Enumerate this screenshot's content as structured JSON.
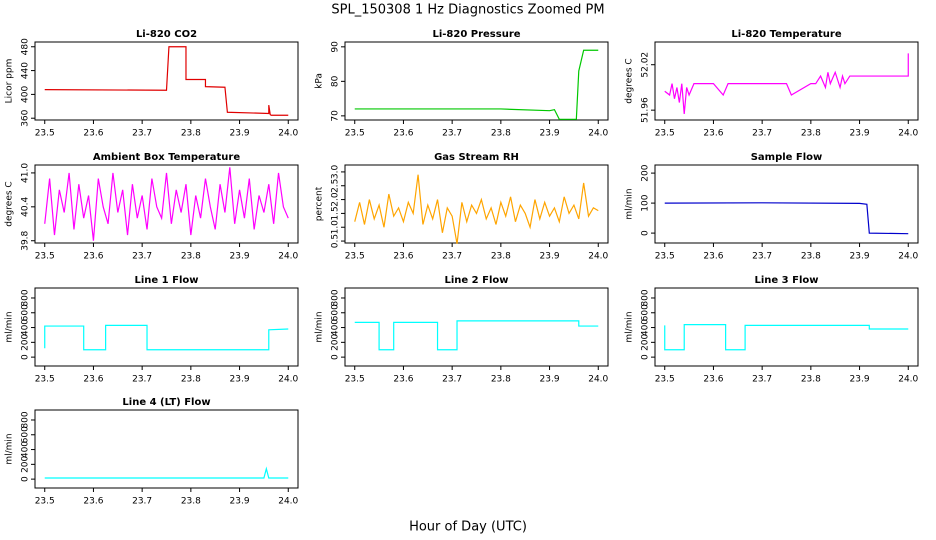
{
  "title": "SPL_150308  1 Hz Diagnostics Zoomed PM",
  "xlabel": "Hour of Day (UTC)",
  "chart_data": [
    {
      "type": "line",
      "title": "Li-820 CO2",
      "ylabel": "Licor ppm",
      "color": "#e00000",
      "x": [
        23.5,
        23.75,
        23.755,
        23.79,
        23.79,
        23.83,
        23.83,
        23.87,
        23.875,
        23.96,
        23.96,
        23.963,
        23.965,
        24.0
      ],
      "values": [
        408,
        407,
        480,
        480,
        425,
        425,
        413,
        412,
        370,
        368,
        382,
        366,
        365,
        365
      ],
      "xlim": [
        23.48,
        24.02
      ],
      "xticks": [
        23.5,
        23.6,
        23.7,
        23.8,
        23.9,
        {
          "value": 24,
          "label": "24.0"
        }
      ],
      "ylim": [
        357,
        488
      ],
      "yticks": [
        360,
        400,
        440,
        480
      ]
    },
    {
      "type": "line",
      "title": "Li-820 Pressure",
      "ylabel": "kPa",
      "color": "#00c800",
      "x": [
        23.5,
        23.8,
        23.9,
        23.91,
        23.92,
        23.955,
        23.96,
        23.97,
        24.0
      ],
      "values": [
        72,
        72,
        71.5,
        71.8,
        69,
        69,
        83,
        89,
        89
      ],
      "xlim": [
        23.48,
        24.02
      ],
      "xticks": [
        23.5,
        23.6,
        23.7,
        23.8,
        23.9,
        {
          "value": 24,
          "label": "24.0"
        }
      ],
      "ylim": [
        68.8,
        91.4
      ],
      "yticks": [
        70,
        80,
        90
      ]
    },
    {
      "type": "line",
      "title": "Li-820 Temperature",
      "ylabel": "degrees C",
      "color": "#ff00ff",
      "x": [
        23.5,
        23.51,
        23.515,
        23.52,
        23.525,
        23.53,
        23.535,
        23.54,
        23.545,
        23.55,
        23.56,
        23.6,
        23.62,
        23.63,
        23.65,
        23.7,
        23.75,
        23.76,
        23.8,
        23.81,
        23.82,
        23.83,
        23.835,
        23.84,
        23.85,
        23.86,
        23.865,
        23.87,
        23.88,
        23.9,
        23.95,
        23.99,
        24.0,
        24.0
      ],
      "values": [
        51.985,
        51.98,
        51.995,
        51.975,
        51.99,
        51.97,
        51.995,
        51.955,
        51.99,
        51.98,
        51.995,
        51.995,
        51.98,
        51.995,
        51.995,
        51.995,
        51.995,
        51.98,
        51.995,
        51.995,
        52.005,
        51.99,
        52.01,
        51.995,
        52.01,
        51.99,
        52.005,
        51.995,
        52.005,
        52.005,
        52.005,
        52.005,
        52.005,
        52.035
      ],
      "xlim": [
        23.48,
        24.02
      ],
      "xticks": [
        23.5,
        23.6,
        23.7,
        23.8,
        23.9,
        {
          "value": 24,
          "label": "24.0"
        }
      ],
      "ylim": [
        51.947,
        52.05
      ],
      "yticks": [
        51.96,
        52.02
      ]
    },
    {
      "type": "line",
      "title": "Ambient Box Temperature",
      "ylabel": "degrees C",
      "color": "#ff00ff",
      "x": [
        23.5,
        23.51,
        23.52,
        23.53,
        23.54,
        23.55,
        23.56,
        23.57,
        23.58,
        23.59,
        23.6,
        23.61,
        23.62,
        23.63,
        23.64,
        23.65,
        23.66,
        23.67,
        23.68,
        23.69,
        23.7,
        23.71,
        23.72,
        23.73,
        23.74,
        23.75,
        23.76,
        23.77,
        23.78,
        23.79,
        23.8,
        23.81,
        23.82,
        23.83,
        23.84,
        23.85,
        23.86,
        23.87,
        23.88,
        23.89,
        23.9,
        23.91,
        23.92,
        23.93,
        23.94,
        23.95,
        23.96,
        23.97,
        23.98,
        23.99,
        24.0
      ],
      "values": [
        40.1,
        40.9,
        39.9,
        40.7,
        40.3,
        41.0,
        40.0,
        40.8,
        40.2,
        40.6,
        39.8,
        40.9,
        40.4,
        40.1,
        41.0,
        40.3,
        40.7,
        39.9,
        40.8,
        40.2,
        40.6,
        40.0,
        40.9,
        40.4,
        40.2,
        41.0,
        40.1,
        40.7,
        40.3,
        40.8,
        39.9,
        40.6,
        40.2,
        40.9,
        40.4,
        40.0,
        40.8,
        40.3,
        41.1,
        40.1,
        40.7,
        40.2,
        40.9,
        40.0,
        40.6,
        40.3,
        40.8,
        40.1,
        41.0,
        40.4,
        40.2
      ],
      "xlim": [
        23.48,
        24.02
      ],
      "xticks": [
        23.5,
        23.6,
        23.7,
        23.8,
        23.9,
        {
          "value": 24,
          "label": "24.0"
        }
      ],
      "ylim": [
        39.76,
        41.14
      ],
      "yticks": [
        39.8,
        40.4,
        {
          "value": 41,
          "label": "41.0"
        }
      ]
    },
    {
      "type": "line",
      "title": "Gas Stream RH",
      "ylabel": "percent",
      "color": "#ffa500",
      "x": [
        23.5,
        23.51,
        23.52,
        23.53,
        23.54,
        23.55,
        23.56,
        23.57,
        23.58,
        23.59,
        23.6,
        23.61,
        23.62,
        23.63,
        23.64,
        23.65,
        23.66,
        23.67,
        23.68,
        23.69,
        23.7,
        23.71,
        23.72,
        23.73,
        23.74,
        23.75,
        23.76,
        23.77,
        23.78,
        23.79,
        23.8,
        23.81,
        23.82,
        23.83,
        23.84,
        23.85,
        23.86,
        23.87,
        23.88,
        23.89,
        23.9,
        23.91,
        23.92,
        23.93,
        23.94,
        23.95,
        23.96,
        23.97,
        23.98,
        23.99,
        24.0
      ],
      "values": [
        1.2,
        1.9,
        1.1,
        2.0,
        1.3,
        1.8,
        1.0,
        2.2,
        1.4,
        1.7,
        1.2,
        1.9,
        1.5,
        2.9,
        1.1,
        1.8,
        1.3,
        2.0,
        0.8,
        1.7,
        1.4,
        0.4,
        1.9,
        1.2,
        1.8,
        1.5,
        2.0,
        1.3,
        1.7,
        1.1,
        1.9,
        1.4,
        2.1,
        1.2,
        1.8,
        1.5,
        1.0,
        2.0,
        1.3,
        1.9,
        1.4,
        1.7,
        1.2,
        2.1,
        1.5,
        1.8,
        1.3,
        2.6,
        1.4,
        1.7,
        1.6
      ],
      "xlim": [
        23.48,
        24.02
      ],
      "xticks": [
        23.5,
        23.6,
        23.7,
        23.8,
        23.9,
        {
          "value": 24,
          "label": "24.0"
        }
      ],
      "ylim": [
        0.43,
        3.25
      ],
      "yticks": [
        0.5,
        {
          "value": 1,
          "label": "1.0"
        },
        1.5,
        {
          "value": 2,
          "label": "2.0"
        },
        2.5,
        {
          "value": 3,
          "label": "3.0"
        }
      ]
    },
    {
      "type": "line",
      "title": "Sample Flow",
      "ylabel": "ml/min",
      "color": "#0000cc",
      "x": [
        23.5,
        23.7,
        23.9,
        23.915,
        23.92,
        24.0
      ],
      "values": [
        100,
        101,
        99,
        96,
        0,
        -2
      ],
      "xlim": [
        23.48,
        24.02
      ],
      "xticks": [
        23.5,
        23.6,
        23.7,
        23.8,
        23.9,
        {
          "value": 24,
          "label": "24.0"
        }
      ],
      "ylim": [
        -33,
        227
      ],
      "yticks": [
        0,
        100,
        200
      ]
    },
    {
      "type": "line",
      "title": "Line 1 Flow",
      "ylabel": "ml/min",
      "color": "#00ffff",
      "x": [
        23.5,
        23.5,
        23.58,
        23.58,
        23.625,
        23.625,
        23.71,
        23.71,
        23.96,
        23.96,
        24.0
      ],
      "values": [
        120,
        420,
        420,
        100,
        100,
        430,
        430,
        100,
        100,
        370,
        380
      ],
      "xlim": [
        23.48,
        24.02
      ],
      "xticks": [
        23.5,
        23.6,
        23.7,
        23.8,
        23.9,
        {
          "value": 24,
          "label": "24.0"
        }
      ],
      "ylim": [
        -120,
        935
      ],
      "yticks": [
        0,
        200,
        400,
        600,
        800
      ]
    },
    {
      "type": "line",
      "title": "Line 2 Flow",
      "ylabel": "ml/min",
      "color": "#00ffff",
      "x": [
        23.5,
        23.55,
        23.55,
        23.58,
        23.58,
        23.67,
        23.67,
        23.71,
        23.71,
        23.96,
        23.96,
        24.0
      ],
      "values": [
        470,
        470,
        100,
        100,
        470,
        470,
        100,
        100,
        490,
        490,
        420,
        420
      ],
      "xlim": [
        23.48,
        24.02
      ],
      "xticks": [
        23.5,
        23.6,
        23.7,
        23.8,
        23.9,
        {
          "value": 24,
          "label": "24.0"
        }
      ],
      "ylim": [
        -120,
        935
      ],
      "yticks": [
        0,
        200,
        400,
        600,
        800
      ]
    },
    {
      "type": "line",
      "title": "Line 3 Flow",
      "ylabel": "ml/min",
      "color": "#00ffff",
      "x": [
        23.5,
        23.5,
        23.54,
        23.54,
        23.625,
        23.625,
        23.665,
        23.665,
        23.92,
        23.92,
        24.0
      ],
      "values": [
        430,
        100,
        100,
        440,
        440,
        100,
        100,
        430,
        430,
        380,
        380
      ],
      "xlim": [
        23.48,
        24.02
      ],
      "xticks": [
        23.5,
        23.6,
        23.7,
        23.8,
        23.9,
        {
          "value": 24,
          "label": "24.0"
        }
      ],
      "ylim": [
        -120,
        935
      ],
      "yticks": [
        0,
        200,
        400,
        600,
        800
      ]
    },
    {
      "type": "line",
      "title": "Line 4 (LT) Flow",
      "ylabel": "ml/min",
      "color": "#00ffff",
      "x": [
        23.5,
        23.95,
        23.955,
        23.96,
        23.965,
        24.0
      ],
      "values": [
        15,
        15,
        140,
        15,
        15,
        15
      ],
      "xlim": [
        23.48,
        24.02
      ],
      "xticks": [
        23.5,
        23.6,
        23.7,
        23.8,
        23.9,
        {
          "value": 24,
          "label": "24.0"
        }
      ],
      "ylim": [
        -120,
        935
      ],
      "yticks": [
        0,
        200,
        400,
        600,
        800
      ]
    }
  ]
}
